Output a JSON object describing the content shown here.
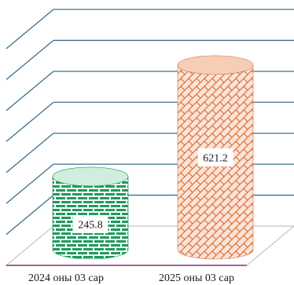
{
  "chart_data": {
    "type": "bar",
    "title": "",
    "xlabel": "",
    "ylabel": "",
    "categories": [
      "2024 оны 03 сар",
      "2025 оны 03 сар"
    ],
    "values": [
      245.8,
      621.2
    ],
    "ylim": [
      0,
      700
    ],
    "grid": true,
    "legend": "none",
    "colors": {
      "bar1_face": "#ffffff",
      "bar1_pattern": "#1e9a5a",
      "bar1_top": "#cfeedd",
      "bar2_face": "#fbe3d6",
      "bar2_pattern": "#d9713f",
      "bar2_top": "#f6cdb6",
      "grid": "#3d6e8f",
      "floor_edge": "#8b2a6e",
      "floor": "#b7b7b7"
    }
  }
}
